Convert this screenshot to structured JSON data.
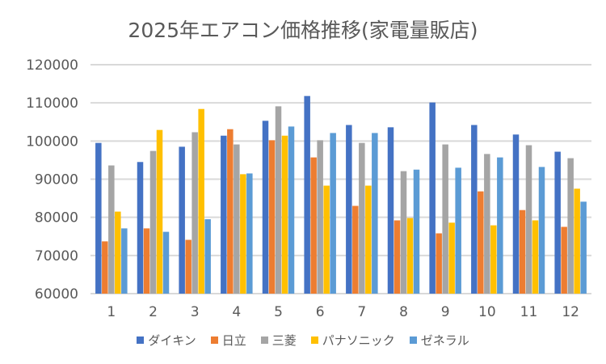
{
  "chart_data": {
    "type": "bar",
    "title": "2025年エアコン価格推移(家電量販店)",
    "categories": [
      "1",
      "2",
      "3",
      "4",
      "5",
      "6",
      "7",
      "8",
      "9",
      "10",
      "11",
      "12"
    ],
    "ylim": [
      60000,
      120000
    ],
    "yticks": [
      "60000",
      "70000",
      "80000",
      "90000",
      "100000",
      "110000",
      "120000"
    ],
    "grid": true,
    "legend": "bottom",
    "series": [
      {
        "name": "ダイキン",
        "color": "#4472C4",
        "values": [
          99500,
          94500,
          98500,
          101400,
          105300,
          111800,
          104200,
          103600,
          110100,
          104200,
          101700,
          97200
        ]
      },
      {
        "name": "日立",
        "color": "#ED7D31",
        "values": [
          73700,
          77100,
          74100,
          103100,
          100200,
          95700,
          83000,
          79200,
          75800,
          86800,
          81900,
          77500
        ]
      },
      {
        "name": "三菱",
        "color": "#A5A5A5",
        "values": [
          93600,
          97400,
          102300,
          99100,
          109100,
          100200,
          99500,
          92100,
          99100,
          96600,
          98900,
          95500
        ]
      },
      {
        "name": "パナソニック",
        "color": "#FFC000",
        "values": [
          81500,
          102900,
          108400,
          91300,
          101400,
          88300,
          88300,
          79800,
          78600,
          77900,
          79200,
          87500
        ]
      },
      {
        "name": "ゼネラル",
        "color": "#5B9BD5",
        "values": [
          77100,
          76200,
          79500,
          91500,
          103800,
          102100,
          102100,
          92500,
          93000,
          95700,
          93200,
          84100
        ]
      }
    ]
  }
}
